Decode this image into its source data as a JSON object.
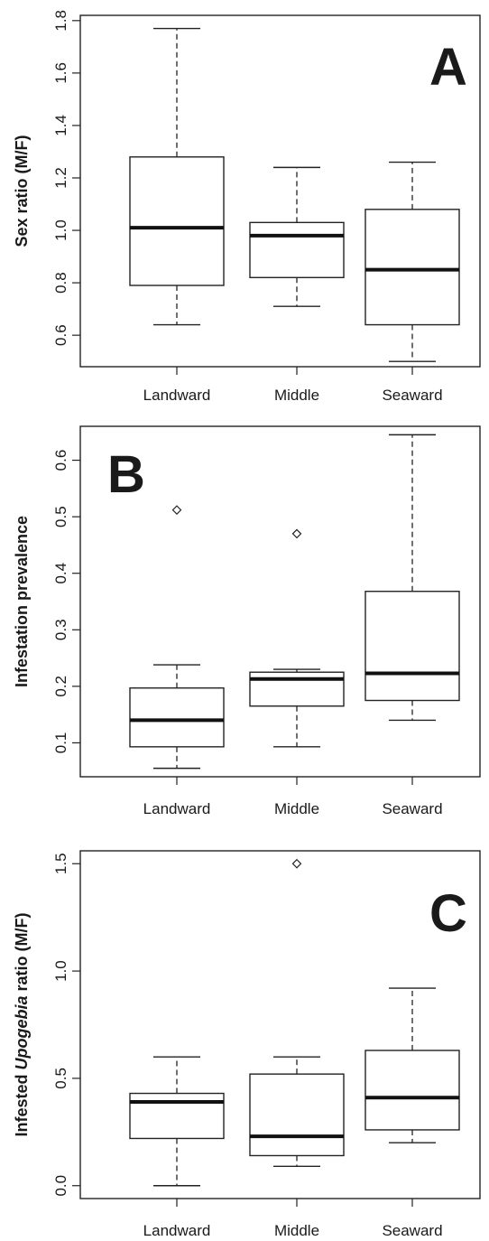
{
  "chart_data": [
    {
      "type": "boxplot",
      "panel_label": "A",
      "ylabel": "Sex ratio (M/F)",
      "ylim": [
        0.48,
        1.82
      ],
      "yticks": [
        0.6,
        0.8,
        1.0,
        1.2,
        1.4,
        1.6,
        1.8
      ],
      "ytick_labels": [
        "0.6",
        "0.8",
        "1.0",
        "1.2",
        "1.4",
        "1.6",
        "1.8"
      ],
      "categories": [
        "Landward",
        "Middle",
        "Seaward"
      ],
      "boxes": [
        {
          "whisker_low": 0.64,
          "q1": 0.79,
          "median": 1.01,
          "q3": 1.28,
          "whisker_high": 1.77,
          "outliers": []
        },
        {
          "whisker_low": 0.71,
          "q1": 0.82,
          "median": 0.98,
          "q3": 1.03,
          "whisker_high": 1.24,
          "outliers": []
        },
        {
          "whisker_low": 0.5,
          "q1": 0.64,
          "median": 0.85,
          "q3": 1.08,
          "whisker_high": 1.26,
          "outliers": []
        }
      ]
    },
    {
      "type": "boxplot",
      "panel_label": "B",
      "ylabel": "Infestation prevalence",
      "ylim": [
        0.04,
        0.66
      ],
      "yticks": [
        0.1,
        0.2,
        0.3,
        0.4,
        0.5,
        0.6
      ],
      "ytick_labels": [
        "0.1",
        "0.2",
        "0.3",
        "0.4",
        "0.5",
        "0.6"
      ],
      "categories": [
        "Landward",
        "Middle",
        "Seaward"
      ],
      "boxes": [
        {
          "whisker_low": 0.055,
          "q1": 0.093,
          "median": 0.14,
          "q3": 0.197,
          "whisker_high": 0.238,
          "outliers": [
            0.512
          ]
        },
        {
          "whisker_low": 0.093,
          "q1": 0.165,
          "median": 0.213,
          "q3": 0.225,
          "whisker_high": 0.23,
          "outliers": [
            0.47
          ]
        },
        {
          "whisker_low": 0.14,
          "q1": 0.175,
          "median": 0.223,
          "q3": 0.368,
          "whisker_high": 0.645,
          "outliers": []
        }
      ]
    },
    {
      "type": "boxplot",
      "panel_label": "C",
      "ylabel_parts": [
        {
          "text": "Infested ",
          "italic": false
        },
        {
          "text": "Upogebia",
          "italic": true
        },
        {
          "text": " ratio (M/F)",
          "italic": false
        }
      ],
      "ylim": [
        -0.06,
        1.56
      ],
      "yticks": [
        0.0,
        0.5,
        1.0,
        1.5
      ],
      "ytick_labels": [
        "0.0",
        "0.5",
        "1.0",
        "1.5"
      ],
      "categories": [
        "Landward",
        "Middle",
        "Seaward"
      ],
      "boxes": [
        {
          "whisker_low": 0.0,
          "q1": 0.22,
          "median": 0.39,
          "q3": 0.43,
          "whisker_high": 0.6,
          "outliers": []
        },
        {
          "whisker_low": 0.09,
          "q1": 0.14,
          "median": 0.23,
          "q3": 0.52,
          "whisker_high": 0.6,
          "outliers": [
            1.5
          ]
        },
        {
          "whisker_low": 0.2,
          "q1": 0.26,
          "median": 0.41,
          "q3": 0.63,
          "whisker_high": 0.92,
          "outliers": []
        }
      ]
    }
  ]
}
